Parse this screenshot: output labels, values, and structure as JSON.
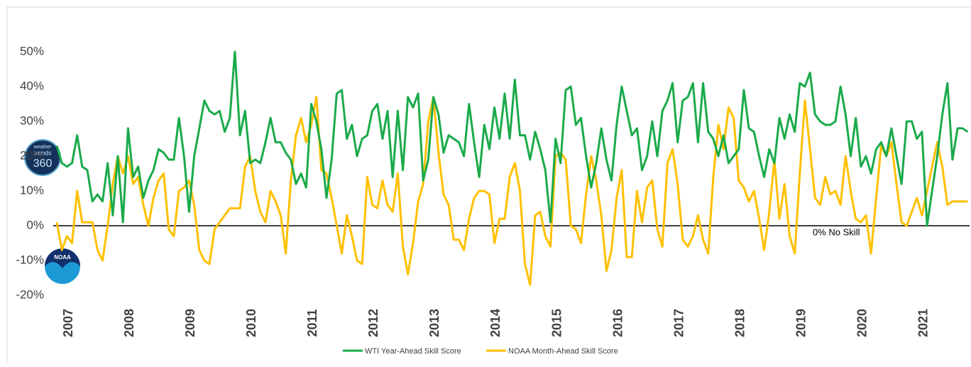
{
  "chart_data": {
    "type": "line",
    "categories": [
      "2007",
      null,
      null,
      null,
      null,
      null,
      null,
      null,
      null,
      null,
      null,
      null,
      "2008",
      null,
      null,
      null,
      null,
      null,
      null,
      null,
      null,
      null,
      null,
      null,
      "2009",
      null,
      null,
      null,
      null,
      null,
      null,
      null,
      null,
      null,
      null,
      null,
      "2010",
      null,
      null,
      null,
      null,
      null,
      null,
      null,
      null,
      null,
      null,
      null,
      "2011",
      null,
      null,
      null,
      null,
      null,
      null,
      null,
      null,
      null,
      null,
      null,
      "2012",
      null,
      null,
      null,
      null,
      null,
      null,
      null,
      null,
      null,
      null,
      null,
      "2013",
      null,
      null,
      null,
      null,
      null,
      null,
      null,
      null,
      null,
      null,
      null,
      "2014",
      null,
      null,
      null,
      null,
      null,
      null,
      null,
      null,
      null,
      null,
      null,
      "2015",
      null,
      null,
      null,
      null,
      null,
      null,
      null,
      null,
      null,
      null,
      null,
      "2016",
      null,
      null,
      null,
      null,
      null,
      null,
      null,
      null,
      null,
      null,
      null,
      "2017",
      null,
      null,
      null,
      null,
      null,
      null,
      null,
      null,
      null,
      null,
      null,
      "2018",
      null,
      null,
      null,
      null,
      null,
      null,
      null,
      null,
      null,
      null,
      null,
      "2019",
      null,
      null,
      null,
      null,
      null,
      null,
      null,
      null,
      null,
      null,
      null,
      "2020",
      null,
      null,
      null,
      null,
      null,
      null,
      null,
      null,
      null,
      null,
      null,
      "2021",
      null,
      null,
      null,
      null,
      null,
      null,
      null,
      null,
      null,
      null,
      null
    ],
    "series": [
      {
        "name": "WTI Year-Ahead Skill Score",
        "color": "#1aaa4a",
        "values": [
          23,
          18,
          17,
          18,
          26,
          17,
          16,
          7,
          9,
          7,
          18,
          3,
          20,
          1,
          28,
          14,
          17,
          8,
          13,
          16,
          22,
          21,
          19,
          19,
          31,
          20,
          4,
          20,
          28,
          36,
          33,
          32,
          33,
          27,
          31,
          50,
          26,
          33,
          18,
          19,
          18,
          24,
          31,
          24,
          24,
          21,
          19,
          12,
          15,
          11,
          35,
          30,
          22,
          8,
          19,
          38,
          39,
          25,
          29,
          20,
          25,
          26,
          33,
          35,
          25,
          33,
          14,
          33,
          16,
          37,
          34,
          38,
          13,
          19,
          37,
          32,
          21,
          26,
          25,
          24,
          20,
          35,
          24,
          14,
          29,
          22,
          34,
          25,
          38,
          25,
          42,
          26,
          26,
          19,
          27,
          22,
          16,
          1,
          25,
          18,
          39,
          40,
          29,
          31,
          20,
          11,
          18,
          28,
          19,
          13,
          29,
          40,
          33,
          26,
          28,
          16,
          20,
          30,
          20,
          33,
          36,
          41,
          24,
          36,
          37,
          41,
          24,
          41,
          27,
          25,
          20,
          26,
          18,
          20,
          22,
          39,
          28,
          27,
          20,
          14,
          22,
          18,
          31,
          25,
          32,
          27,
          41,
          40,
          44,
          32,
          30,
          29,
          29,
          30,
          40,
          32,
          20,
          31,
          17,
          20,
          15,
          22,
          24,
          20,
          28,
          20,
          12,
          30,
          30,
          25,
          27,
          0,
          10,
          20,
          32,
          41,
          19,
          28,
          28,
          27
        ]
      },
      {
        "name": "NOAA Month-Ahead Skill Score",
        "color": "#ffc000",
        "values": [
          1,
          -7,
          -3,
          -5,
          10,
          1,
          1,
          1,
          -7,
          -10,
          0,
          12,
          20,
          15,
          20,
          12,
          14,
          6,
          0,
          8,
          13,
          15,
          -1,
          -3,
          10,
          11,
          13,
          6,
          -7,
          -10,
          -11,
          -1,
          1,
          3,
          5,
          5,
          5,
          17,
          20,
          10,
          4,
          1,
          10,
          7,
          3,
          -8,
          13,
          26,
          31,
          24,
          29,
          37,
          16,
          15,
          8,
          0,
          -8,
          3,
          -3,
          -10,
          -11,
          14,
          6,
          5,
          13,
          6,
          4,
          15,
          -6,
          -14,
          -5,
          7,
          12,
          30,
          37,
          21,
          9,
          6,
          -4,
          -4,
          -7,
          2,
          8,
          10,
          10,
          9,
          -5,
          2,
          2,
          14,
          18,
          10,
          -11,
          -17,
          3,
          4,
          -3,
          -6,
          20,
          21,
          19,
          0,
          -1,
          -5,
          9,
          20,
          13,
          3,
          -13,
          -7,
          8,
          16,
          -9,
          -9,
          10,
          1,
          11,
          13,
          -1,
          -6,
          18,
          22,
          12,
          -4,
          -6,
          -3,
          3,
          -4,
          -8,
          14,
          29,
          22,
          34,
          31,
          13,
          11,
          7,
          10,
          2,
          -7,
          4,
          19,
          2,
          12,
          -3,
          -8,
          15,
          36,
          22,
          8,
          6,
          14,
          9,
          10,
          6,
          20,
          10,
          2,
          1,
          3,
          -8,
          8,
          23,
          20,
          24,
          12,
          1,
          0,
          4,
          8,
          3,
          10,
          17,
          24,
          17,
          6,
          7,
          7,
          7,
          7
        ]
      }
    ],
    "ylim": [
      -20,
      60
    ],
    "yticks": [
      {
        "value": -20,
        "label": "-20%"
      },
      {
        "value": -10,
        "label": "-10%"
      },
      {
        "value": 0,
        "label": "0%"
      },
      {
        "value": 10,
        "label": "10%"
      },
      {
        "value": 20,
        "label": "20%"
      },
      {
        "value": 30,
        "label": "30%"
      },
      {
        "value": 40,
        "label": "40%"
      },
      {
        "value": 50,
        "label": "50%"
      }
    ],
    "grid": false,
    "annotation": "0% No Skill",
    "logo_texts": [
      "weather",
      "trends",
      "360",
      "NOAA"
    ],
    "legend": "bottom"
  }
}
